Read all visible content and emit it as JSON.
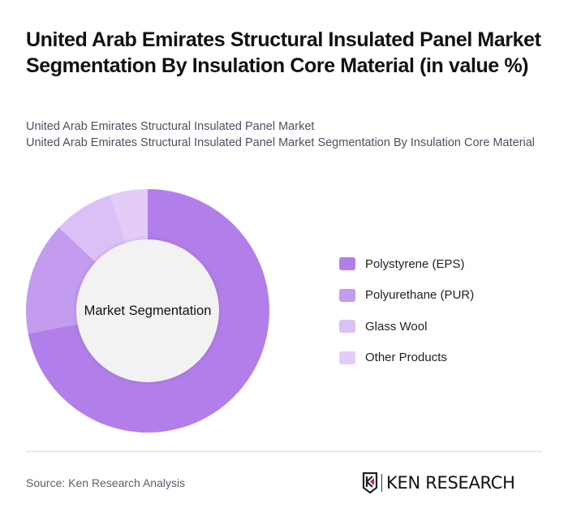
{
  "header": {
    "title": "United Arab Emirates Structural Insulated Panel Market Segmentation By Insulation Core Material (in value %)",
    "subtitle_line1": "United Arab Emirates Structural Insulated Panel Market",
    "subtitle_line2": "United Arab Emirates Structural Insulated Panel Market Segmentation By Insulation Core Material"
  },
  "chart": {
    "center_label": "Market Segmentation"
  },
  "legend": {
    "items": [
      {
        "label": "Polystyrene (EPS)",
        "color": "#b27fea"
      },
      {
        "label": "Polyurethane (PUR)",
        "color": "#c39cef"
      },
      {
        "label": "Glass Wool",
        "color": "#dbc0f6"
      },
      {
        "label": "Other Products",
        "color": "#e3ccf8"
      }
    ]
  },
  "footer": {
    "source": "Source: Ken Research Analysis",
    "logo_text": "KEN RESEARCH"
  },
  "chart_data": {
    "type": "pie",
    "subtype": "donut",
    "title": "United Arab Emirates Structural Insulated Panel Market Segmentation By Insulation Core Material (in value %)",
    "center_label": "Market Segmentation",
    "categories": [
      "Polystyrene (EPS)",
      "Polyurethane (PUR)",
      "Glass Wool",
      "Other Products"
    ],
    "values": [
      72,
      15,
      8,
      5
    ],
    "colors": [
      "#b27fea",
      "#c39cef",
      "#dbc0f6",
      "#e3ccf8"
    ],
    "unit": "%",
    "legend_position": "right",
    "start_angle": "12 o'clock, clockwise"
  }
}
